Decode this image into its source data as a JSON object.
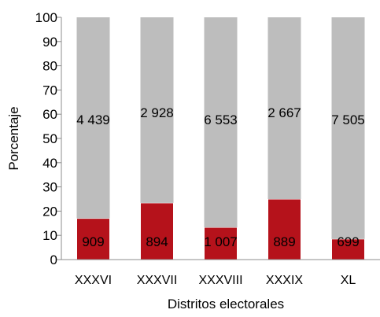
{
  "chart_data": {
    "type": "bar",
    "stacked": true,
    "percent_stacked": true,
    "title": "",
    "xlabel": "Distritos electorales",
    "ylabel": "Porcentaje",
    "ylim": [
      0,
      100
    ],
    "yticks": [
      "0",
      "10",
      "20",
      "30",
      "40",
      "50",
      "60",
      "70",
      "80",
      "90",
      "100"
    ],
    "grid": false,
    "legend": "none",
    "categories": [
      "XXXVI",
      "XXXVII",
      "XXXVIII",
      "XXXIX",
      "XL"
    ],
    "series": [
      {
        "color": "#b5121b",
        "percent": [
          17.0,
          23.4,
          13.3,
          25.0,
          8.5
        ],
        "labels": [
          "909",
          "894",
          "1 007",
          "889",
          "699"
        ]
      },
      {
        "color": "#bdbdbd",
        "percent": [
          83.0,
          76.6,
          86.7,
          75.0,
          91.5
        ],
        "labels": [
          "4 439",
          "2 928",
          "6 553",
          "2 667",
          "7 505"
        ]
      }
    ]
  }
}
